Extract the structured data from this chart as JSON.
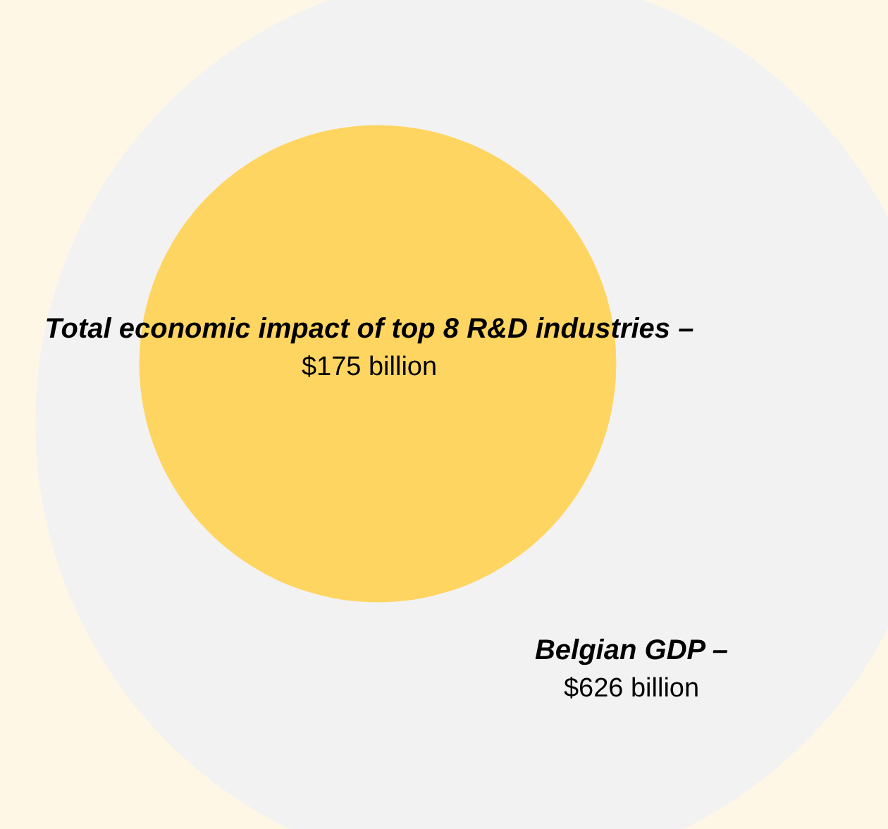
{
  "chart_data": {
    "type": "other",
    "categories": [
      "Total economic impact of top 8 R&D industries –",
      "Belgian GDP –"
    ],
    "values": [
      175,
      626
    ],
    "value_labels": [
      "$175 billion",
      "$626 billion"
    ],
    "colors": [
      "#ffd561",
      "#f2f2f2"
    ]
  }
}
